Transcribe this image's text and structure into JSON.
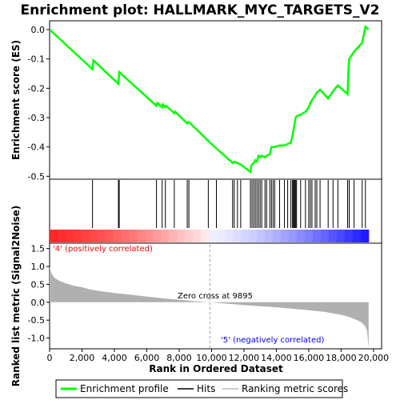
{
  "chart_data": {
    "type": "line",
    "title": "Enrichment plot: HALLMARK_MYC_TARGETS_V2",
    "xlabel": "Rank in Ordered Dataset",
    "top_ylabel": "Enrichment score (ES)",
    "bottom_ylabel": "Ranked list metric (Signal2Noise)",
    "xlim": [
      0,
      20500
    ],
    "es_ylim": [
      -0.51,
      0.03
    ],
    "metric_ylim": [
      -1.3,
      1.65
    ],
    "x_ticks": [
      0,
      2000,
      4000,
      6000,
      8000,
      10000,
      12000,
      14000,
      16000,
      18000,
      20000
    ],
    "x_tick_labels": [
      "0",
      "2,000",
      "4,000",
      "6,000",
      "8,000",
      "10,000",
      "12,000",
      "14,000",
      "16,000",
      "18,000",
      "20,000"
    ],
    "es_ticks": [
      0.0,
      -0.1,
      -0.2,
      -0.3,
      -0.4,
      -0.5
    ],
    "es_tick_labels": [
      "0.0",
      "-0.1",
      "-0.2",
      "-0.3",
      "-0.4",
      "-0.5"
    ],
    "metric_ticks": [
      1.5,
      1.0,
      0.5,
      0.0,
      -0.5,
      -1.0
    ],
    "metric_tick_labels": [
      "1.5",
      "1.0",
      "0.5",
      "0.0",
      "-0.5",
      "-1.0"
    ],
    "zero_cross": 9895,
    "zero_cross_label": "Zero cross at 9895",
    "pos_label": "'4' (positively correlated)",
    "neg_label": "'5' (negatively correlated)",
    "colors": {
      "es_line": "#00ff00",
      "pos_label": "#ff0000",
      "neg_label": "#0000ff",
      "metric_fill": "#b0b0b0"
    },
    "legend": [
      {
        "label": "Enrichment profile"
      },
      {
        "label": "Hits"
      },
      {
        "label": "Ranking metric scores"
      }
    ],
    "hits": [
      2650,
      4250,
      4300,
      6600,
      6950,
      7150,
      7700,
      8500,
      8600,
      9800,
      10300,
      11300,
      11400,
      11600,
      11800,
      12400,
      12500,
      12600,
      12700,
      12800,
      12900,
      13000,
      13100,
      13300,
      13400,
      13600,
      13700,
      13800,
      13900,
      14200,
      14500,
      14700,
      14900,
      15000,
      15050,
      15100,
      15150,
      15200,
      15250,
      15500,
      15800,
      16000,
      16100,
      16200,
      16400,
      16500,
      16700,
      17200,
      17500,
      17800,
      18400,
      18500,
      18800,
      19300,
      19500
    ],
    "es_profile": {
      "x": [
        0,
        2650,
        2700,
        4250,
        4300,
        6600,
        6650,
        6950,
        7000,
        7150,
        7200,
        7700,
        7750,
        8500,
        8600,
        9800,
        10300,
        11300,
        11400,
        11600,
        11800,
        12400,
        12450,
        12500,
        12600,
        12700,
        12800,
        12900,
        13000,
        13100,
        13300,
        13400,
        13600,
        13700,
        13800,
        13900,
        14200,
        14500,
        14700,
        14900,
        15000,
        15050,
        15100,
        15150,
        15200,
        15250,
        15500,
        15800,
        16000,
        16100,
        16200,
        16400,
        16500,
        16700,
        17200,
        17500,
        17800,
        18400,
        18450,
        18500,
        18800,
        19300,
        19500,
        19700
      ],
      "y": [
        0.0,
        -0.135,
        -0.105,
        -0.185,
        -0.145,
        -0.26,
        -0.25,
        -0.265,
        -0.255,
        -0.265,
        -0.26,
        -0.285,
        -0.28,
        -0.32,
        -0.315,
        -0.38,
        -0.405,
        -0.455,
        -0.45,
        -0.455,
        -0.46,
        -0.485,
        -0.465,
        -0.46,
        -0.455,
        -0.445,
        -0.45,
        -0.43,
        -0.435,
        -0.43,
        -0.435,
        -0.43,
        -0.425,
        -0.4,
        -0.4,
        -0.4,
        -0.395,
        -0.395,
        -0.39,
        -0.385,
        -0.36,
        -0.345,
        -0.33,
        -0.315,
        -0.3,
        -0.295,
        -0.29,
        -0.28,
        -0.265,
        -0.25,
        -0.24,
        -0.225,
        -0.215,
        -0.205,
        -0.235,
        -0.21,
        -0.19,
        -0.22,
        -0.14,
        -0.1,
        -0.075,
        -0.045,
        0.01,
        0.0
      ]
    },
    "metric_curve": {
      "x": [
        0,
        100,
        300,
        600,
        1000,
        1500,
        2000,
        2500,
        3000,
        4000,
        5000,
        6000,
        7000,
        8000,
        9000,
        9895,
        11000,
        12000,
        13000,
        14000,
        15000,
        16000,
        17000,
        17500,
        18000,
        18500,
        19000,
        19300,
        19500,
        19600,
        19700
      ],
      "y": [
        1.0,
        0.82,
        0.68,
        0.6,
        0.53,
        0.46,
        0.42,
        0.36,
        0.32,
        0.26,
        0.21,
        0.16,
        0.11,
        0.07,
        0.03,
        0.0,
        -0.04,
        -0.08,
        -0.11,
        -0.14,
        -0.18,
        -0.22,
        -0.27,
        -0.31,
        -0.35,
        -0.41,
        -0.5,
        -0.58,
        -0.68,
        -0.8,
        -1.28
      ]
    }
  }
}
